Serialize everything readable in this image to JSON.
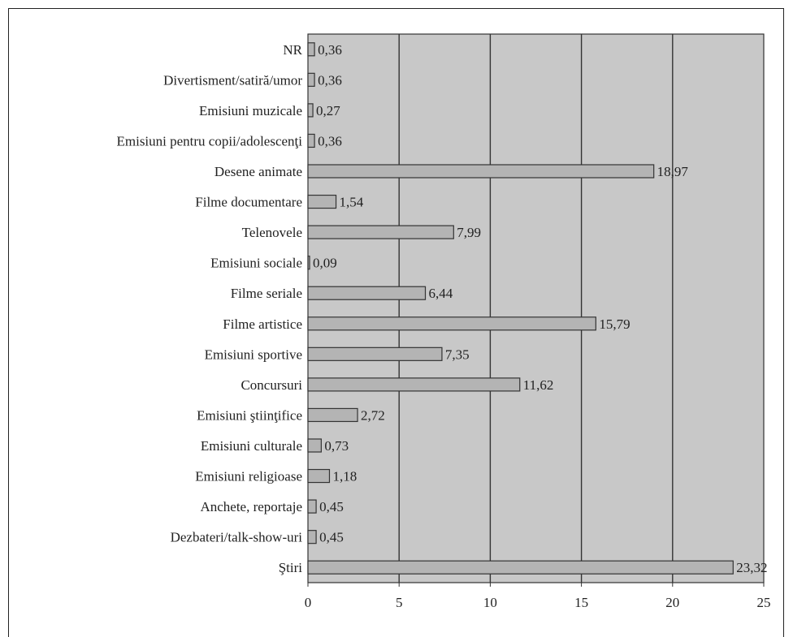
{
  "chart_data": {
    "type": "bar",
    "orientation": "horizontal",
    "title": "",
    "xlabel": "",
    "ylabel": "",
    "xlim": [
      0,
      25
    ],
    "xticks": [
      "0",
      "5",
      "10",
      "15",
      "20",
      "25"
    ],
    "grid": "vertical",
    "colors": {
      "plot_background": "#c8c8c8",
      "bar_fill": "#b4b4b4",
      "bar_stroke": "#333333",
      "gridline": "#333333"
    },
    "categories": [
      "NR",
      "Divertisment/satiră/umor",
      "Emisiuni muzicale",
      "Emisiuni pentru copii/adolescenţi",
      "Desene animate",
      "Filme documentare",
      "Telenovele",
      "Emisiuni sociale",
      "Filme seriale",
      "Filme artistice",
      "Emisiuni sportive",
      "Concursuri",
      "Emisiuni ştiinţifice",
      "Emisiuni culturale",
      "Emisiuni religioase",
      "Anchete, reportaje",
      "Dezbateri/talk-show-uri",
      "Ştiri"
    ],
    "values": [
      0.36,
      0.36,
      0.27,
      0.36,
      18.97,
      1.54,
      7.99,
      0.09,
      6.44,
      15.79,
      7.35,
      11.62,
      2.72,
      0.73,
      1.18,
      0.45,
      0.45,
      23.32
    ],
    "value_labels": [
      "0,36",
      "0,36",
      "0,27",
      "0,36",
      "18,97",
      "1,54",
      "7,99",
      "0,09",
      "6,44",
      "15,79",
      "7,35",
      "11,62",
      "2,72",
      "0,73",
      "1,18",
      "0,45",
      "0,45",
      "23,32"
    ]
  }
}
